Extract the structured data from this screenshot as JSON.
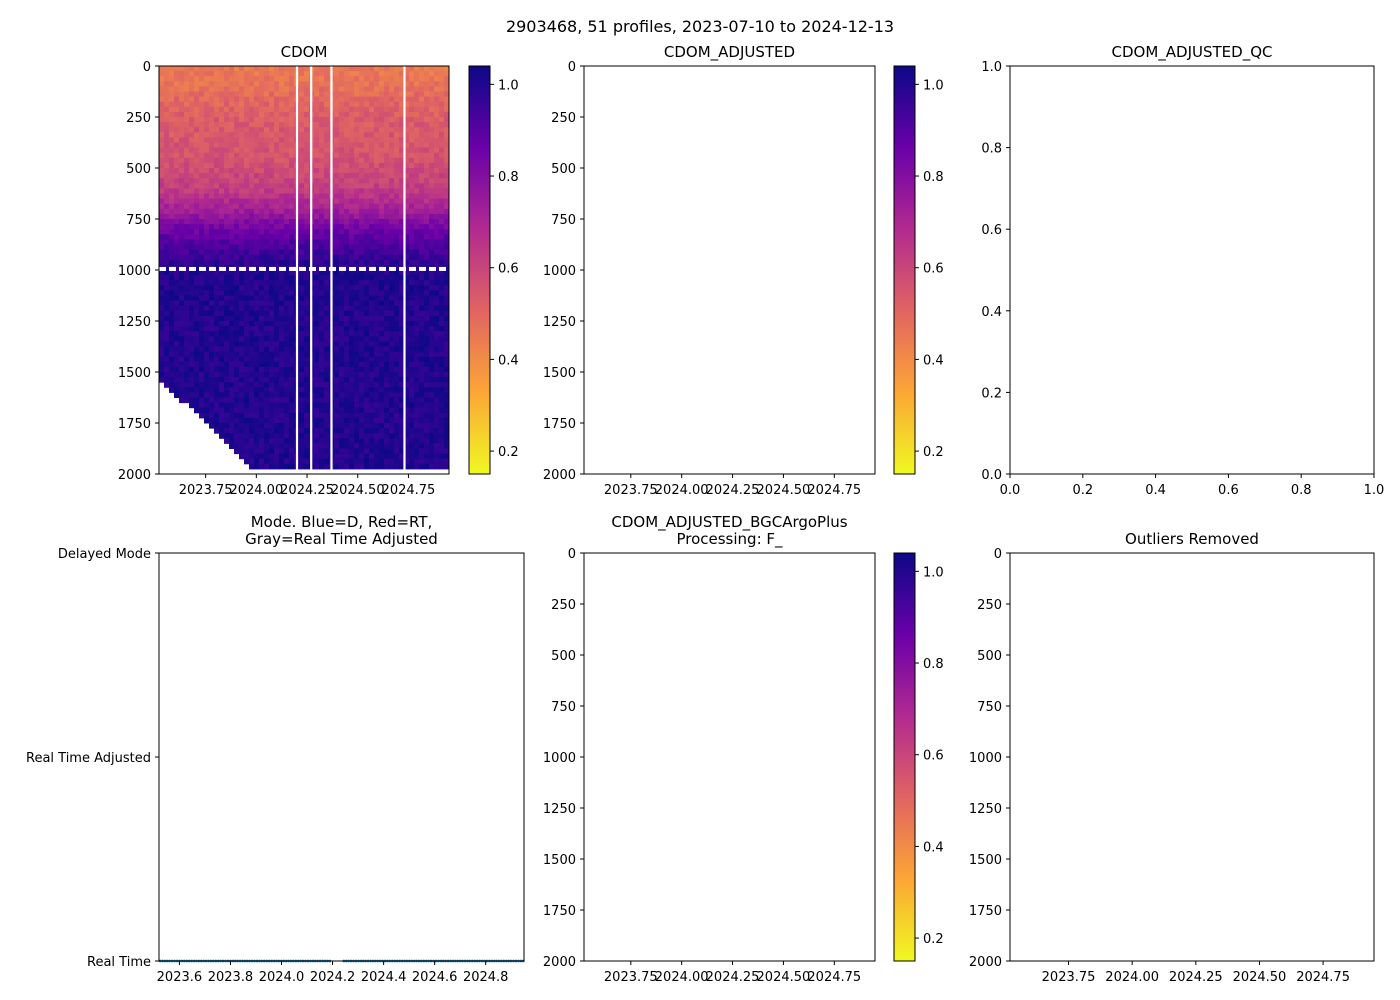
{
  "figure": {
    "suptitle": "2903468, 51 profiles, 2023-07-10 to 2024-12-13"
  },
  "colormap": {
    "name": "plasma_r",
    "stops": [
      "#f0f921",
      "#fca636",
      "#e16462",
      "#b12a90",
      "#6a00a8",
      "#0d0887"
    ],
    "vmin": 0.15,
    "vmax": 1.04,
    "ticks": [
      0.2,
      0.4,
      0.6,
      0.8,
      1.0
    ],
    "tick_labels": [
      "0.2",
      "0.4",
      "0.6",
      "0.8",
      "1.0"
    ]
  },
  "chart_data": [
    {
      "id": "cdom",
      "type": "heatmap",
      "title": "CDOM",
      "xlabel": "",
      "ylabel": "",
      "xlim": [
        2023.52,
        2024.95
      ],
      "ylim": [
        2000,
        0
      ],
      "x_ticks": [
        2023.75,
        2024.0,
        2024.25,
        2024.5,
        2024.75
      ],
      "x_tick_labels": [
        "2023.75",
        "2024.00",
        "2024.25",
        "2024.50",
        "2024.75"
      ],
      "y_ticks": [
        0,
        250,
        500,
        750,
        1000,
        1250,
        1500,
        1750,
        2000
      ],
      "y_tick_labels": [
        "0",
        "250",
        "500",
        "750",
        "1000",
        "1250",
        "1500",
        "1750",
        "2000"
      ],
      "colorbar": true,
      "depth_profile": [
        {
          "depth": 0,
          "value": 0.45
        },
        {
          "depth": 100,
          "value": 0.47
        },
        {
          "depth": 250,
          "value": 0.53
        },
        {
          "depth": 450,
          "value": 0.56
        },
        {
          "depth": 600,
          "value": 0.62
        },
        {
          "depth": 700,
          "value": 0.72
        },
        {
          "depth": 800,
          "value": 0.85
        },
        {
          "depth": 900,
          "value": 0.93
        },
        {
          "depth": 1000,
          "value": 1.0
        },
        {
          "depth": 2000,
          "value": 1.0
        }
      ],
      "missing_profiles_x": [
        2024.2,
        2024.27,
        2024.37,
        2024.73
      ],
      "gap_depth": [
        985,
        1000
      ]
    },
    {
      "id": "cdom_adjusted",
      "type": "heatmap",
      "title": "CDOM_ADJUSTED",
      "xlabel": "",
      "ylabel": "",
      "xlim": [
        2023.52,
        2024.95
      ],
      "ylim": [
        2000,
        0
      ],
      "x_ticks": [
        2023.75,
        2024.0,
        2024.25,
        2024.5,
        2024.75
      ],
      "x_tick_labels": [
        "2023.75",
        "2024.00",
        "2024.25",
        "2024.50",
        "2024.75"
      ],
      "y_ticks": [
        0,
        250,
        500,
        750,
        1000,
        1250,
        1500,
        1750,
        2000
      ],
      "y_tick_labels": [
        "0",
        "250",
        "500",
        "750",
        "1000",
        "1250",
        "1500",
        "1750",
        "2000"
      ],
      "colorbar": true,
      "values": []
    },
    {
      "id": "cdom_adjusted_qc",
      "type": "scatter",
      "title": "CDOM_ADJUSTED_QC",
      "xlabel": "",
      "ylabel": "",
      "xlim": [
        0,
        1
      ],
      "ylim": [
        0,
        1
      ],
      "x_ticks": [
        0,
        0.2,
        0.4,
        0.6,
        0.8,
        1.0
      ],
      "x_tick_labels": [
        "0.0",
        "0.2",
        "0.4",
        "0.6",
        "0.8",
        "1.0"
      ],
      "y_ticks": [
        0,
        0.2,
        0.4,
        0.6,
        0.8,
        1.0
      ],
      "y_tick_labels": [
        "0.0",
        "0.2",
        "0.4",
        "0.6",
        "0.8",
        "1.0"
      ],
      "colorbar": false,
      "values": []
    },
    {
      "id": "mode",
      "type": "scatter",
      "title": "Mode. Blue=D, Red=RT,",
      "title2": "Gray=Real Time Adjusted",
      "xlabel": "",
      "ylabel": "",
      "xlim": [
        2023.52,
        2024.95
      ],
      "ylim": [
        0,
        2
      ],
      "x_ticks": [
        2023.6,
        2023.8,
        2024.0,
        2024.2,
        2024.4,
        2024.6,
        2024.8
      ],
      "x_tick_labels": [
        "2023.6",
        "2023.8",
        "2024.0",
        "2024.2",
        "2024.4",
        "2024.6",
        "2024.8"
      ],
      "y_ticks": [
        2,
        1,
        0
      ],
      "y_tick_labels": [
        "Delayed Mode",
        "Real Time Adjusted",
        "Real Time"
      ],
      "colorbar": false,
      "marker_color": "#1f77b4",
      "series": [
        {
          "name": "Real Time",
          "y": 0,
          "x_ranges": [
            [
              2023.52,
              2024.19
            ],
            [
              2024.24,
              2024.95
            ]
          ],
          "spacing": 0.0095
        }
      ]
    },
    {
      "id": "bgcargoplus",
      "type": "heatmap",
      "title": "CDOM_ADJUSTED_BGCArgoPlus",
      "title2": "Processing: F_",
      "xlabel": "",
      "ylabel": "",
      "xlim": [
        2023.52,
        2024.95
      ],
      "ylim": [
        2000,
        0
      ],
      "x_ticks": [
        2023.75,
        2024.0,
        2024.25,
        2024.5,
        2024.75
      ],
      "x_tick_labels": [
        "2023.75",
        "2024.00",
        "2024.25",
        "2024.50",
        "2024.75"
      ],
      "y_ticks": [
        0,
        250,
        500,
        750,
        1000,
        1250,
        1500,
        1750,
        2000
      ],
      "y_tick_labels": [
        "0",
        "250",
        "500",
        "750",
        "1000",
        "1250",
        "1500",
        "1750",
        "2000"
      ],
      "colorbar": true,
      "values": []
    },
    {
      "id": "outliers",
      "type": "heatmap",
      "title": "Outliers Removed",
      "xlabel": "",
      "ylabel": "",
      "xlim": [
        2023.52,
        2024.95
      ],
      "ylim": [
        2000,
        0
      ],
      "x_ticks": [
        2023.75,
        2024.0,
        2024.25,
        2024.5,
        2024.75
      ],
      "x_tick_labels": [
        "2023.75",
        "2024.00",
        "2024.25",
        "2024.50",
        "2024.75"
      ],
      "y_ticks": [
        0,
        250,
        500,
        750,
        1000,
        1250,
        1500,
        1750,
        2000
      ],
      "y_tick_labels": [
        "0",
        "250",
        "500",
        "750",
        "1000",
        "1250",
        "1500",
        "1750",
        "2000"
      ],
      "colorbar": false,
      "values": []
    }
  ]
}
